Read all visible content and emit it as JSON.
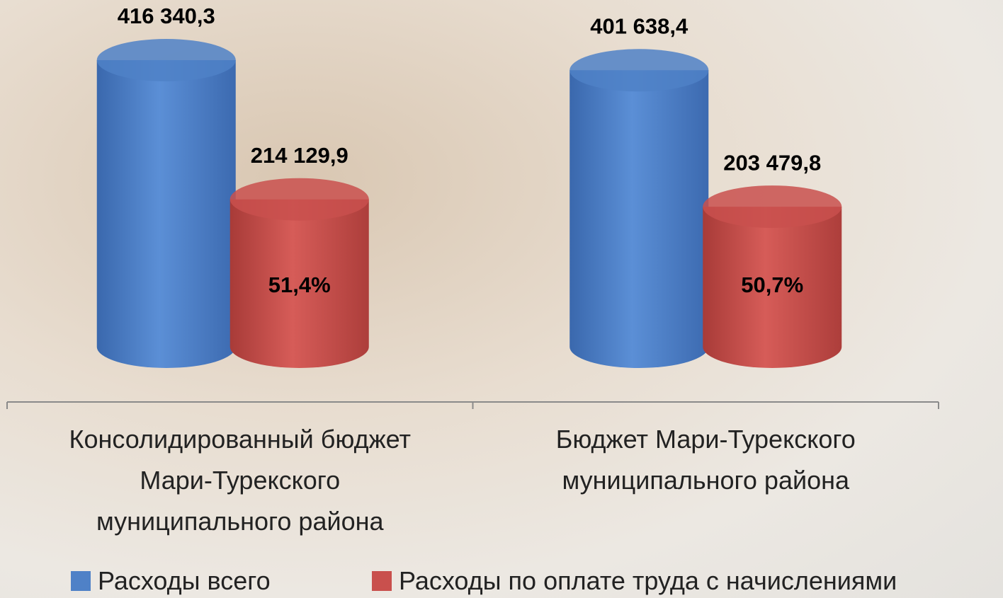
{
  "chart_data": {
    "type": "bar",
    "categories": [
      "Консолидированный бюджет\nМари-Турекского\nмуниципального района",
      "Бюджет Мари-Турекского\nмуниципального района"
    ],
    "series": [
      {
        "name": "Расходы всего",
        "color": "#4f81c7",
        "values": [
          416340.3,
          401638.4
        ],
        "value_labels": [
          "416 340,3",
          "401 638,4"
        ]
      },
      {
        "name": "Расходы по оплате труда с начислениями",
        "color": "#c9504d",
        "values": [
          214129.9,
          203479.8
        ],
        "value_labels": [
          "214 129,9",
          "203 479,8"
        ],
        "annotations": [
          {
            "value": 51.4,
            "label": "51,4%"
          },
          {
            "value": 50.7,
            "label": "50,7%"
          }
        ]
      }
    ]
  }
}
